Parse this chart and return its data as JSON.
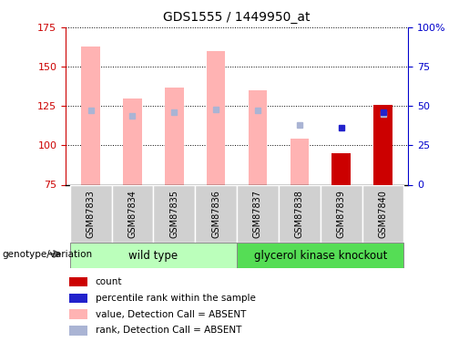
{
  "title": "GDS1555 / 1449950_at",
  "samples": [
    "GSM87833",
    "GSM87834",
    "GSM87835",
    "GSM87836",
    "GSM87837",
    "GSM87838",
    "GSM87839",
    "GSM87840"
  ],
  "ylim": [
    75,
    175
  ],
  "yticks": [
    75,
    100,
    125,
    150,
    175
  ],
  "y2lim": [
    0,
    100
  ],
  "y2ticks": [
    0,
    25,
    50,
    75,
    100
  ],
  "y2ticklabels": [
    "0",
    "25",
    "50",
    "75",
    "100%"
  ],
  "bar_values_pink": [
    163,
    130,
    137,
    160,
    135,
    104,
    95,
    126
  ],
  "bar_bottom": 75,
  "rank_dots_light_blue": [
    {
      "sample_idx": 0,
      "y": 122
    },
    {
      "sample_idx": 1,
      "y": 119
    },
    {
      "sample_idx": 2,
      "y": 121
    },
    {
      "sample_idx": 3,
      "y": 123
    },
    {
      "sample_idx": 4,
      "y": 122
    },
    {
      "sample_idx": 5,
      "y": 113
    },
    {
      "sample_idx": 7,
      "y": 120
    }
  ],
  "rank_dots_dark_blue": [
    {
      "sample_idx": 6,
      "y": 111
    },
    {
      "sample_idx": 7,
      "y": 121
    }
  ],
  "red_bars": [
    {
      "sample_idx": 6,
      "value": 95
    },
    {
      "sample_idx": 7,
      "value": 126
    }
  ],
  "group1_label": "wild type",
  "group2_label": "glycerol kinase knockout",
  "genotype_label": "genotype/variation",
  "color_pink": "#ffb3b3",
  "color_light_blue": "#aab4d4",
  "color_dark_blue": "#2222cc",
  "color_red": "#cc0000",
  "color_group1": "#bbffbb",
  "color_group2": "#55dd55",
  "color_axis_left": "#cc0000",
  "color_axis_right": "#0000cc",
  "bar_width": 0.45,
  "legend_items": [
    {
      "color": "#cc0000",
      "label": "count"
    },
    {
      "color": "#2222cc",
      "label": "percentile rank within the sample"
    },
    {
      "color": "#ffb3b3",
      "label": "value, Detection Call = ABSENT"
    },
    {
      "color": "#aab4d4",
      "label": "rank, Detection Call = ABSENT"
    }
  ]
}
